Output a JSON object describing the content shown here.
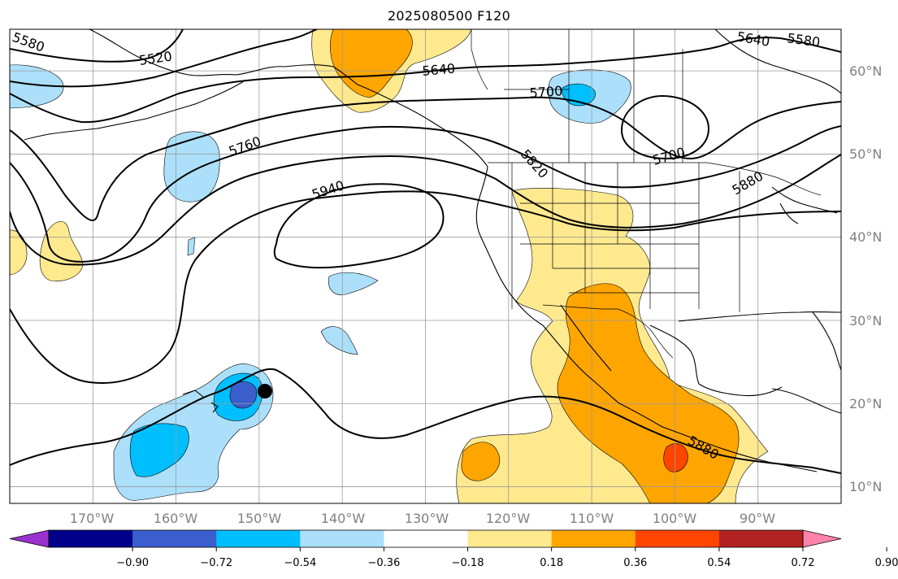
{
  "title": "2025080500 F120",
  "map": {
    "projection": "cylindrical lat/lon",
    "lon_range": [
      "180°W",
      "80°W"
    ],
    "lat_range": [
      "8°N",
      "65°N"
    ],
    "grid": true,
    "lat_ticks": [
      "10°N",
      "20°N",
      "30°N",
      "40°N",
      "50°N",
      "60°N"
    ],
    "lon_ticks": [
      "170°W",
      "160°W",
      "150°W",
      "140°W",
      "130°W",
      "120°W",
      "110°W",
      "100°W",
      "90°W"
    ],
    "contour_labels": [
      "5520",
      "5580",
      "5640",
      "5640",
      "5700",
      "5700",
      "5760",
      "5820",
      "5880",
      "5880",
      "5940",
      "5580"
    ],
    "marker": {
      "lon": -149,
      "lat": 21.5,
      "shape": "black-dot"
    },
    "colors": {
      "light_blue": "#ace0fa",
      "mid_blue": "#00bfff",
      "blue": "#3a5fcd",
      "light_yellow": "#fee98f",
      "orange": "#ffa500",
      "red_orange": "#ff4500"
    }
  },
  "colorbar": {
    "ticks": [
      "−0.90",
      "−0.72",
      "−0.54",
      "−0.36",
      "−0.18",
      "0.18",
      "0.36",
      "0.54",
      "0.72",
      "0.90"
    ],
    "colors": [
      "#9932cc",
      "#00008b",
      "#3a5fcd",
      "#00bfff",
      "#ace0fa",
      "#ffffff",
      "#fee98f",
      "#ffa500",
      "#ff4500",
      "#b22222",
      "#ff82ab"
    ],
    "extend": "both"
  }
}
